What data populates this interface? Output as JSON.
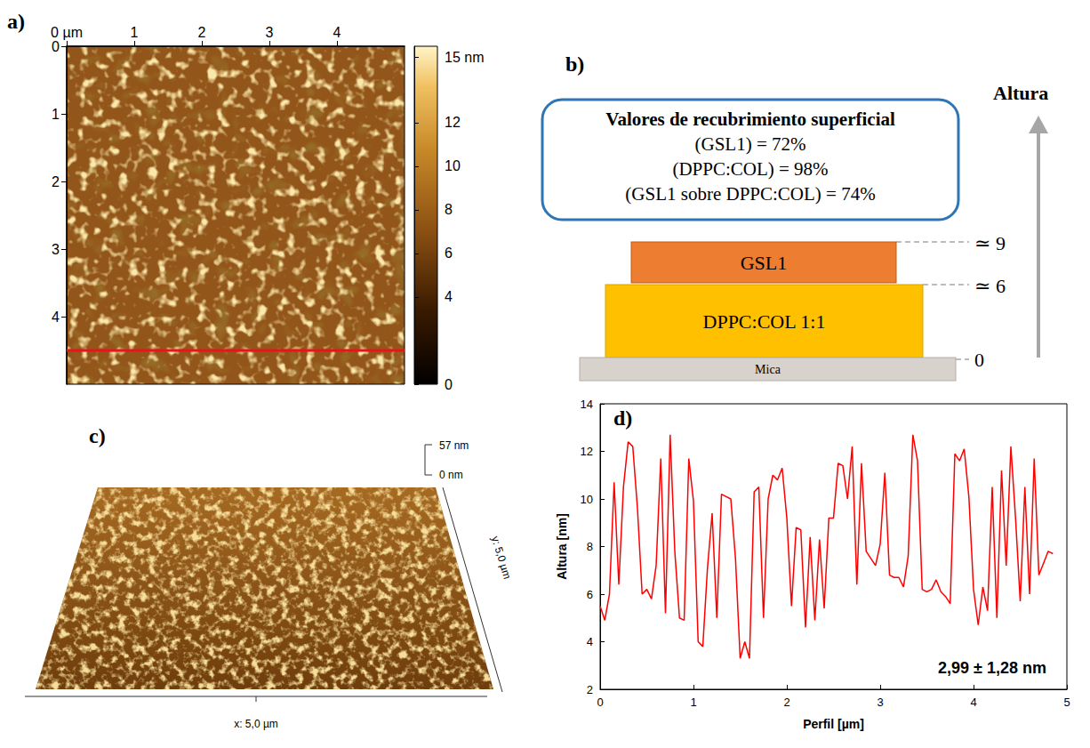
{
  "chart_data": [
    {
      "panel": "a)",
      "type": "image_map",
      "xlim": [
        0,
        5
      ],
      "ylim": [
        0,
        5
      ],
      "xticks": [
        {
          "value": 0,
          "label": "0 µm"
        },
        1,
        2,
        3,
        4
      ],
      "yticks": [
        0,
        1,
        2,
        3,
        4
      ],
      "profile_line_y": 4.5,
      "color": "#e8141c",
      "colorbar": {
        "lim": [
          0,
          15.5
        ],
        "ticks": [
          0,
          4,
          6,
          8,
          10,
          12,
          {
            "value": 15,
            "label": "15 nm"
          }
        ]
      }
    },
    {
      "panel": "d)",
      "type": "line",
      "color": "#ff0000",
      "x_label": "Perfil [µm]",
      "y_label": "Altura [nm]",
      "annotation": "2,99 ± 1,28 nm",
      "grid": false,
      "xlim": [
        0,
        5
      ],
      "xticks": [
        0,
        1,
        2,
        3,
        4,
        5
      ],
      "ylim": [
        2,
        14
      ],
      "yticks": [
        2,
        4,
        6,
        8,
        10,
        12,
        14
      ],
      "x": [
        0,
        0.05,
        0.1,
        0.15,
        0.2,
        0.25,
        0.3,
        0.35,
        0.4,
        0.45,
        0.5,
        0.55,
        0.6,
        0.65,
        0.7,
        0.75,
        0.8,
        0.85,
        0.9,
        0.95,
        1.0,
        1.05,
        1.1,
        1.15,
        1.2,
        1.25,
        1.3,
        1.35,
        1.4,
        1.45,
        1.5,
        1.55,
        1.6,
        1.65,
        1.7,
        1.75,
        1.8,
        1.85,
        1.9,
        1.95,
        2.0,
        2.05,
        2.1,
        2.15,
        2.2,
        2.25,
        2.3,
        2.35,
        2.4,
        2.45,
        2.5,
        2.55,
        2.6,
        2.65,
        2.7,
        2.75,
        2.8,
        2.85,
        2.9,
        2.95,
        3.0,
        3.05,
        3.1,
        3.15,
        3.2,
        3.25,
        3.3,
        3.35,
        3.4,
        3.45,
        3.5,
        3.55,
        3.6,
        3.65,
        3.7,
        3.75,
        3.8,
        3.85,
        3.9,
        3.95,
        4.0,
        4.05,
        4.1,
        4.15,
        4.2,
        4.25,
        4.3,
        4.35,
        4.4,
        4.45,
        4.5,
        4.55,
        4.6,
        4.65,
        4.7,
        4.75,
        4.8,
        4.85
      ],
      "values": [
        5.5,
        4.9,
        6.0,
        10.7,
        6.4,
        10.5,
        12.4,
        12.2,
        9.6,
        6.0,
        6.2,
        5.8,
        7.2,
        11.7,
        5.2,
        12.7,
        7.8,
        5.0,
        4.9,
        11.7,
        9.9,
        4.0,
        3.8,
        7.1,
        9.4,
        5.0,
        10.2,
        10.1,
        10.0,
        7.5,
        3.3,
        4.0,
        3.3,
        10.3,
        10.5,
        5.0,
        10.0,
        11.0,
        10.8,
        11.3,
        9.2,
        5.5,
        8.8,
        8.7,
        4.6,
        8.4,
        4.9,
        8.3,
        5.4,
        9.2,
        9.2,
        11.5,
        11.4,
        10.0,
        12.2,
        6.4,
        11.5,
        7.8,
        7.5,
        7.2,
        8.1,
        11.1,
        6.8,
        6.7,
        6.7,
        6.3,
        7.6,
        12.7,
        11.6,
        6.2,
        6.1,
        6.2,
        6.6,
        6.1,
        5.9,
        5.6,
        11.9,
        11.6,
        12.1,
        10.1,
        6.2,
        4.7,
        6.3,
        5.3,
        10.5,
        5.0,
        11.2,
        7.2,
        12.2,
        9.2,
        5.7,
        10.5,
        6.0,
        11.7,
        6.8,
        7.3,
        7.8,
        7.7
      ]
    }
  ],
  "diagram": {
    "panel": "b)",
    "box": {
      "title": "Valores de recubrimiento superficial",
      "lines": [
        "(GSL1) = 72%",
        "(DPPC:COL) = 98%",
        "(GSL1 sobre DPPC:COL) = 74%"
      ]
    },
    "layers": [
      {
        "label": "GSL1",
        "color": "#ed7d31"
      },
      {
        "label": "DPPC:COL 1:1",
        "color": "#ffc000"
      },
      {
        "label": "Mica",
        "color": "#d8d2cc"
      }
    ],
    "height_marks": [
      "≃ 9",
      "≃ 6",
      "0"
    ],
    "axis_label": "Altura"
  },
  "image_3d": {
    "panel": "c)",
    "z_labels": [
      "57 nm",
      "0 nm"
    ],
    "x_label": "x: 5,0 µm",
    "y_label": "y: 5,0 µm"
  }
}
